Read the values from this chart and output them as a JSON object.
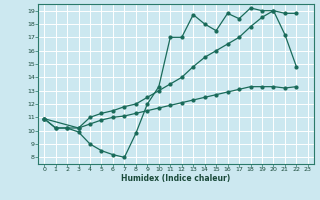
{
  "xlabel": "Humidex (Indice chaleur)",
  "bg_color": "#cce8f0",
  "grid_color": "#ffffff",
  "line_color": "#1a6b5a",
  "xlim": [
    -0.5,
    23.5
  ],
  "ylim": [
    7.5,
    19.5
  ],
  "xticks": [
    0,
    1,
    2,
    3,
    4,
    5,
    6,
    7,
    8,
    9,
    10,
    11,
    12,
    13,
    14,
    15,
    16,
    17,
    18,
    19,
    20,
    21,
    22,
    23
  ],
  "yticks": [
    8,
    9,
    10,
    11,
    12,
    13,
    14,
    15,
    16,
    17,
    18,
    19
  ],
  "line1_x": [
    0,
    1,
    2,
    3,
    4,
    5,
    6,
    7,
    8,
    9,
    10,
    11,
    12,
    13,
    14,
    15,
    16,
    17,
    18,
    19,
    20,
    21,
    22
  ],
  "line1_y": [
    10.9,
    10.2,
    10.2,
    9.9,
    9.0,
    8.5,
    8.2,
    8.0,
    9.8,
    12.0,
    13.3,
    17.0,
    17.0,
    18.7,
    18.0,
    17.5,
    18.8,
    18.4,
    19.2,
    19.0,
    19.0,
    17.2,
    14.8
  ],
  "line2_x": [
    0,
    3,
    4,
    5,
    6,
    7,
    8,
    9,
    10,
    11,
    12,
    13,
    14,
    15,
    16,
    17,
    18,
    19,
    20,
    21,
    22
  ],
  "line2_y": [
    10.9,
    10.2,
    11.0,
    11.3,
    11.5,
    11.8,
    12.0,
    12.5,
    13.0,
    13.5,
    14.0,
    14.8,
    15.5,
    16.0,
    16.5,
    17.0,
    17.8,
    18.5,
    19.0,
    18.8,
    18.8
  ],
  "line3_x": [
    0,
    1,
    2,
    3,
    4,
    5,
    6,
    7,
    8,
    9,
    10,
    11,
    12,
    13,
    14,
    15,
    16,
    17,
    18,
    19,
    20,
    21,
    22
  ],
  "line3_y": [
    10.9,
    10.2,
    10.2,
    10.2,
    10.5,
    10.8,
    11.0,
    11.1,
    11.3,
    11.5,
    11.7,
    11.9,
    12.1,
    12.3,
    12.5,
    12.7,
    12.9,
    13.1,
    13.3,
    13.3,
    13.3,
    13.2,
    13.3
  ]
}
